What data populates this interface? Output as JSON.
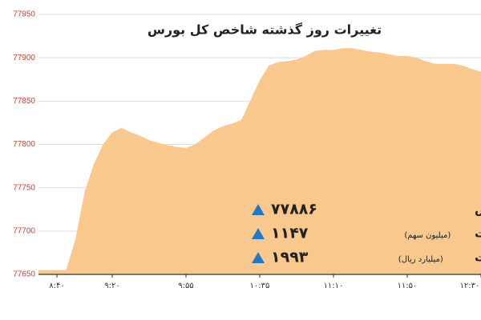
{
  "chart_data": {
    "type": "area",
    "title": "تغییرات روز گذشته شاخص کل بورس",
    "categories": [
      null,
      null,
      "۸:۴۰",
      null,
      null,
      null,
      null,
      null,
      "۹:۲۰",
      null,
      null,
      null,
      null,
      null,
      null,
      null,
      "۹:۵۵",
      null,
      null,
      null,
      null,
      null,
      null,
      null,
      "۱۰:۳۵",
      null,
      null,
      null,
      null,
      null,
      null,
      null,
      "۱۱:۱۰",
      null,
      null,
      null,
      null,
      null,
      null,
      null,
      "۱۱:۵۰",
      null,
      null,
      null,
      null,
      null,
      null,
      null,
      "۱۲:۳۰"
    ],
    "series": [
      {
        "color": "#f9c88c",
        "values": [
          77655,
          77655,
          77655,
          77655,
          77690,
          77745,
          77777,
          77800,
          77814,
          77819,
          77814,
          77810,
          77805,
          77802,
          77799,
          77797,
          77796,
          77800,
          77808,
          77816,
          77821,
          77824,
          77828,
          77851,
          77874,
          77891,
          77895,
          77896,
          77898,
          77902,
          77908,
          77909,
          77909,
          77911,
          77911,
          77909,
          77907,
          77906,
          77904,
          77902,
          77902,
          77900,
          77896,
          77893,
          77893,
          77893,
          77891,
          77887,
          77884
        ]
      }
    ],
    "ylim": [
      77650,
      77950
    ],
    "yticks": [
      77650,
      77700,
      77750,
      77800,
      77850,
      77900,
      77950
    ],
    "grid": true,
    "stats": [
      {
        "label": "شاخص",
        "value": {
          "value": 77886,
          "label": "۷۷۸۸۶"
        }
      },
      {
        "label": "حجم معاملات",
        "note": "(میلیون سهم)",
        "value": {
          "value": 1147,
          "label": "۱۱۴۷"
        }
      },
      {
        "label": "ارزش معاملات",
        "note": "(میلیارد ریال)",
        "value": {
          "value": 1993,
          "label": "۱۹۹۳"
        }
      }
    ]
  }
}
